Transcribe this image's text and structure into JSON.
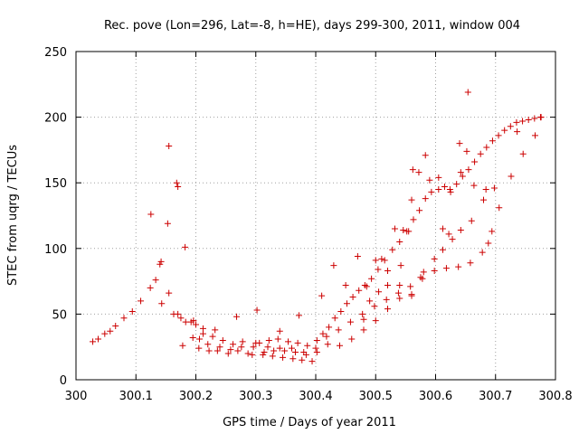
{
  "chart_data": {
    "type": "scatter",
    "title": "Rec. pove (Lon=296, Lat=-8, h=HE), days 299-300, 2011, window 004",
    "xlabel": "GPS time / Days of year 2011",
    "ylabel": "STEC from uqrg / TECUs",
    "xlim": [
      300,
      300.8
    ],
    "ylim": [
      0,
      250
    ],
    "xticks": [
      300,
      300.1,
      300.2,
      300.3,
      300.4,
      300.5,
      300.6,
      300.7,
      300.8
    ],
    "xtick_labels": [
      "300",
      "300.1",
      "300.2",
      "300.3",
      "300.4",
      "300.5",
      "300.6",
      "300.7",
      "300.8"
    ],
    "yticks": [
      0,
      50,
      100,
      150,
      200,
      250
    ],
    "ytick_labels": [
      "0",
      "50",
      "100",
      "150",
      "200",
      "250"
    ],
    "grid": true,
    "marker": "plus",
    "color": "#cc0000",
    "points": [
      [
        300.028,
        29
      ],
      [
        300.037,
        31
      ],
      [
        300.048,
        35
      ],
      [
        300.057,
        37
      ],
      [
        300.066,
        41
      ],
      [
        300.08,
        47
      ],
      [
        300.094,
        52
      ],
      [
        300.108,
        60
      ],
      [
        300.124,
        70
      ],
      [
        300.133,
        76
      ],
      [
        300.14,
        88
      ],
      [
        300.143,
        58
      ],
      [
        300.155,
        66
      ],
      [
        300.163,
        50
      ],
      [
        300.17,
        50
      ],
      [
        300.175,
        47
      ],
      [
        300.178,
        26
      ],
      [
        300.183,
        44
      ],
      [
        300.192,
        44
      ],
      [
        300.195,
        32
      ],
      [
        300.206,
        31
      ],
      [
        300.212,
        35
      ],
      [
        300.22,
        27
      ],
      [
        300.228,
        33
      ],
      [
        300.236,
        22
      ],
      [
        300.245,
        30
      ],
      [
        300.254,
        20
      ],
      [
        300.262,
        27
      ],
      [
        300.27,
        22
      ],
      [
        300.278,
        29
      ],
      [
        300.287,
        20
      ],
      [
        300.296,
        25
      ],
      [
        300.306,
        28
      ],
      [
        300.314,
        21
      ],
      [
        300.322,
        30
      ],
      [
        300.328,
        18
      ],
      [
        300.337,
        31
      ],
      [
        300.345,
        17
      ],
      [
        300.354,
        29
      ],
      [
        300.362,
        16
      ],
      [
        300.37,
        28
      ],
      [
        300.377,
        15
      ],
      [
        300.386,
        26
      ],
      [
        300.394,
        14
      ],
      [
        300.402,
        30
      ],
      [
        300.412,
        35
      ],
      [
        300.422,
        40
      ],
      [
        300.432,
        47
      ],
      [
        300.442,
        52
      ],
      [
        300.452,
        58
      ],
      [
        300.462,
        63
      ],
      [
        300.472,
        68
      ],
      [
        300.482,
        72
      ],
      [
        300.493,
        77
      ],
      [
        300.504,
        84
      ],
      [
        300.515,
        91
      ],
      [
        300.528,
        99
      ],
      [
        300.54,
        105
      ],
      [
        300.552,
        113
      ],
      [
        300.563,
        122
      ],
      [
        300.573,
        129
      ],
      [
        300.583,
        138
      ],
      [
        300.593,
        143
      ],
      [
        300.605,
        145
      ],
      [
        300.615,
        147
      ],
      [
        300.625,
        143
      ],
      [
        300.635,
        149
      ],
      [
        300.645,
        155
      ],
      [
        300.655,
        160
      ],
      [
        300.665,
        166
      ],
      [
        300.675,
        172
      ],
      [
        300.685,
        177
      ],
      [
        300.695,
        182
      ],
      [
        300.705,
        186
      ],
      [
        300.715,
        190
      ],
      [
        300.725,
        193
      ],
      [
        300.735,
        196
      ],
      [
        300.745,
        197
      ],
      [
        300.755,
        198
      ],
      [
        300.765,
        199
      ],
      [
        300.775,
        200
      ],
      [
        300.125,
        126
      ],
      [
        300.142,
        90
      ],
      [
        300.153,
        119
      ],
      [
        300.155,
        178
      ],
      [
        300.168,
        150
      ],
      [
        300.17,
        147
      ],
      [
        300.182,
        101
      ],
      [
        300.196,
        45
      ],
      [
        300.212,
        39
      ],
      [
        300.232,
        38
      ],
      [
        300.268,
        48
      ],
      [
        300.302,
        53
      ],
      [
        300.34,
        37
      ],
      [
        300.372,
        49
      ],
      [
        300.41,
        64
      ],
      [
        300.43,
        87
      ],
      [
        300.45,
        72
      ],
      [
        300.47,
        94
      ],
      [
        300.485,
        71
      ],
      [
        300.5,
        91
      ],
      [
        300.51,
        92
      ],
      [
        300.52,
        83
      ],
      [
        300.532,
        115
      ],
      [
        300.542,
        87
      ],
      [
        300.546,
        114
      ],
      [
        300.555,
        113
      ],
      [
        300.56,
        137
      ],
      [
        300.562,
        160
      ],
      [
        300.572,
        158
      ],
      [
        300.583,
        171
      ],
      [
        300.59,
        152
      ],
      [
        300.605,
        154
      ],
      [
        300.612,
        115
      ],
      [
        300.622,
        111
      ],
      [
        300.624,
        145
      ],
      [
        300.64,
        180
      ],
      [
        300.642,
        158
      ],
      [
        300.652,
        174
      ],
      [
        300.654,
        219
      ],
      [
        300.664,
        148
      ],
      [
        300.684,
        145
      ],
      [
        300.694,
        113
      ],
      [
        300.706,
        131
      ],
      [
        300.726,
        155
      ],
      [
        300.736,
        189
      ],
      [
        300.746,
        172
      ],
      [
        300.766,
        186
      ],
      [
        300.776,
        200
      ],
      [
        300.2,
        42
      ],
      [
        300.205,
        24
      ],
      [
        300.222,
        22
      ],
      [
        300.24,
        25
      ],
      [
        300.258,
        23
      ],
      [
        300.276,
        25
      ],
      [
        300.294,
        19
      ],
      [
        300.312,
        19
      ],
      [
        300.33,
        22
      ],
      [
        300.348,
        22
      ],
      [
        300.366,
        21
      ],
      [
        300.384,
        19
      ],
      [
        300.402,
        21
      ],
      [
        300.42,
        27
      ],
      [
        300.44,
        26
      ],
      [
        300.46,
        31
      ],
      [
        300.48,
        38
      ],
      [
        300.5,
        45
      ],
      [
        300.52,
        54
      ],
      [
        300.54,
        62
      ],
      [
        300.56,
        64
      ],
      [
        300.58,
        82
      ],
      [
        300.598,
        92
      ],
      [
        300.612,
        99
      ],
      [
        300.628,
        107
      ],
      [
        300.642,
        114
      ],
      [
        300.66,
        121
      ],
      [
        300.68,
        137
      ],
      [
        300.698,
        146
      ],
      [
        300.3,
        28
      ],
      [
        300.32,
        25
      ],
      [
        300.34,
        24
      ],
      [
        300.36,
        24
      ],
      [
        300.38,
        21
      ],
      [
        300.4,
        24
      ],
      [
        300.418,
        33
      ],
      [
        300.438,
        38
      ],
      [
        300.458,
        44
      ],
      [
        300.478,
        50
      ],
      [
        300.498,
        56
      ],
      [
        300.518,
        61
      ],
      [
        300.538,
        66
      ],
      [
        300.558,
        71
      ],
      [
        300.578,
        77
      ],
      [
        300.598,
        83
      ],
      [
        300.618,
        85
      ],
      [
        300.638,
        86
      ],
      [
        300.658,
        89
      ],
      [
        300.678,
        97
      ],
      [
        300.688,
        104
      ],
      [
        300.48,
        46
      ],
      [
        300.49,
        60
      ],
      [
        300.505,
        67
      ],
      [
        300.52,
        72
      ],
      [
        300.54,
        72
      ],
      [
        300.56,
        65
      ],
      [
        300.575,
        78
      ]
    ]
  }
}
